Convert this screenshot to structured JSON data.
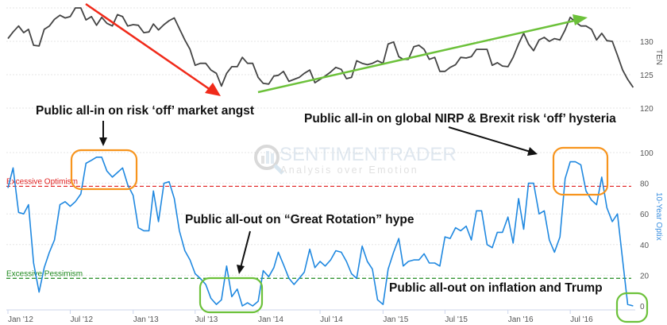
{
  "chart_data": [
    {
      "type": "line",
      "axis_label": "TEN",
      "ylim": [
        120,
        135
      ],
      "yticks": [
        "120",
        "125",
        "130"
      ],
      "grid": true,
      "line_color": "#444444",
      "x": [
        "2012-01-01",
        "2012-01-16",
        "2012-02-01",
        "2012-02-16",
        "2012-03-01",
        "2012-03-16",
        "2012-04-01",
        "2012-04-16",
        "2012-05-01",
        "2012-05-16",
        "2012-06-01",
        "2012-06-16",
        "2012-07-01",
        "2012-07-16",
        "2012-08-01",
        "2012-08-16",
        "2012-09-01",
        "2012-09-16",
        "2012-10-01",
        "2012-10-16",
        "2012-11-01",
        "2012-11-16",
        "2012-12-01",
        "2012-12-16",
        "2013-01-01",
        "2013-01-16",
        "2013-02-01",
        "2013-02-16",
        "2013-03-01",
        "2013-03-16",
        "2013-04-01",
        "2013-04-16",
        "2013-05-01",
        "2013-05-16",
        "2013-06-01",
        "2013-06-16",
        "2013-07-01",
        "2013-07-16",
        "2013-08-01",
        "2013-08-16",
        "2013-09-01",
        "2013-09-16",
        "2013-10-01",
        "2013-10-16",
        "2013-11-01",
        "2013-11-16",
        "2013-12-01",
        "2013-12-16",
        "2014-01-01",
        "2014-01-16",
        "2014-02-01",
        "2014-02-16",
        "2014-03-01",
        "2014-03-16",
        "2014-04-01",
        "2014-04-16",
        "2014-05-01",
        "2014-05-16",
        "2014-06-01",
        "2014-06-16",
        "2014-07-01",
        "2014-07-16",
        "2014-08-01",
        "2014-08-16",
        "2014-09-01",
        "2014-09-16",
        "2014-10-01",
        "2014-10-16",
        "2014-11-01",
        "2014-11-16",
        "2014-12-01",
        "2014-12-16",
        "2015-01-01",
        "2015-01-16",
        "2015-02-01",
        "2015-02-16",
        "2015-03-01",
        "2015-03-16",
        "2015-04-01",
        "2015-04-16",
        "2015-05-01",
        "2015-05-16",
        "2015-06-01",
        "2015-06-16",
        "2015-07-01",
        "2015-07-16",
        "2015-08-01",
        "2015-08-16",
        "2015-09-01",
        "2015-09-16",
        "2015-10-01",
        "2015-10-16",
        "2015-11-01",
        "2015-11-16",
        "2015-12-01",
        "2015-12-16",
        "2016-01-01",
        "2016-01-16",
        "2016-02-01",
        "2016-02-16",
        "2016-03-01",
        "2016-03-16",
        "2016-04-01",
        "2016-04-16",
        "2016-05-01",
        "2016-05-16",
        "2016-06-01",
        "2016-06-16",
        "2016-07-01",
        "2016-07-16",
        "2016-08-01",
        "2016-08-16",
        "2016-09-01",
        "2016-09-16",
        "2016-10-01",
        "2016-10-16",
        "2016-11-01",
        "2016-11-16",
        "2016-12-01",
        "2016-12-16",
        "2017-01-01"
      ],
      "values": [
        130.4,
        131.4,
        132.3,
        131.3,
        131.8,
        129.4,
        129.3,
        131.8,
        132.3,
        133.3,
        133.9,
        133.5,
        133.7,
        135.0,
        135.0,
        133.2,
        133.7,
        132.4,
        133.6,
        132.7,
        132.3,
        134.0,
        133.7,
        132.3,
        132.5,
        132.4,
        131.3,
        131.4,
        132.6,
        131.7,
        132.5,
        133.1,
        133.5,
        131.9,
        130.2,
        128.8,
        126.4,
        126.7,
        126.7,
        125.7,
        125.2,
        123.3,
        125.2,
        126.2,
        126.2,
        127.6,
        126.7,
        126.7,
        124.6,
        123.7,
        123.6,
        124.8,
        124.9,
        125.5,
        124.0,
        124.3,
        124.6,
        125.2,
        125.7,
        123.8,
        124.3,
        124.8,
        125.4,
        126.1,
        125.8,
        124.4,
        124.6,
        127.1,
        126.7,
        126.5,
        126.7,
        127.1,
        126.7,
        129.6,
        129.9,
        127.7,
        127.3,
        127.3,
        129.2,
        129.4,
        128.8,
        127.3,
        127.6,
        125.5,
        125.5,
        126.1,
        126.5,
        127.6,
        127.5,
        127.7,
        128.8,
        128.8,
        128.8,
        126.4,
        126.8,
        126.3,
        126.2,
        127.6,
        129.6,
        131.2,
        129.6,
        128.6,
        130.2,
        130.6,
        130.0,
        130.4,
        130.2,
        131.7,
        133.6,
        132.9,
        132.3,
        132.3,
        131.8,
        130.2,
        131.2,
        130.1,
        130.0,
        127.9,
        125.7,
        124.3,
        123.1
      ]
    },
    {
      "type": "line",
      "axis_label": "10-Year Optix",
      "ylim": [
        0,
        100
      ],
      "yticks": [
        "0",
        "20",
        "40",
        "60",
        "80",
        "100"
      ],
      "grid": true,
      "line_color": "#1f88e0",
      "values": [
        77,
        90,
        61,
        60,
        66,
        28,
        9,
        25,
        35,
        43,
        66,
        68,
        65,
        68,
        73,
        93,
        95,
        97,
        97,
        88,
        84,
        87,
        90,
        79,
        72,
        51,
        49,
        49,
        75,
        55,
        80,
        81,
        70,
        49,
        36,
        30,
        21,
        18,
        14,
        5,
        1,
        4,
        26,
        6,
        11,
        0,
        2,
        0,
        3,
        23,
        19,
        25,
        35,
        27,
        18,
        14,
        18,
        22,
        37,
        25,
        29,
        26,
        30,
        36,
        35,
        29,
        21,
        18,
        39,
        29,
        24,
        4,
        1,
        24,
        35,
        44,
        26,
        29,
        30,
        30,
        34,
        28,
        28,
        26,
        45,
        44,
        51,
        49,
        52,
        43,
        62,
        62,
        40,
        38,
        48,
        48,
        58,
        41,
        70,
        50,
        80,
        80,
        60,
        62,
        43,
        35,
        45,
        83,
        94,
        94,
        92,
        75,
        69,
        66,
        84,
        64,
        55,
        60,
        30,
        1,
        0
      ],
      "reference_lines": [
        {
          "label": "Excessive Optimism",
          "value": 78,
          "color": "#e02020"
        },
        {
          "label": "Excessive Pessimism",
          "value": 18,
          "color": "#1e8a1e"
        }
      ]
    }
  ],
  "x_tick_labels": [
    "Jan '12",
    "Jul '12",
    "Jan '13",
    "Jul '13",
    "Jan '14",
    "Jul '14",
    "Jan '15",
    "Jul '15",
    "Jan '16",
    "Jul '16"
  ],
  "x_tick_dates": [
    "2012-01-01",
    "2012-07-01",
    "2013-01-01",
    "2013-07-01",
    "2014-01-01",
    "2014-07-01",
    "2015-01-01",
    "2015-07-01",
    "2016-01-01",
    "2016-07-01"
  ],
  "annotations": {
    "risk_off_angst": "Public all-in on risk ‘off’ market angst",
    "nirp_brexit": "Public all-in on global NIRP & Brexit risk ‘off’ hysteria",
    "great_rotation": "Public all-out on “Great Rotation” hype",
    "inflation_trump": "Public all-out on inflation and Trump"
  },
  "colors": {
    "down_trend_arrow": "#f02a1a",
    "up_trend_arrow": "#6cc13a",
    "highlight_high": "#f7941d",
    "highlight_low": "#6cc13a"
  },
  "watermark": {
    "brand": "SENTIMENTRADER",
    "tagline": "Analysis over Emotion"
  }
}
